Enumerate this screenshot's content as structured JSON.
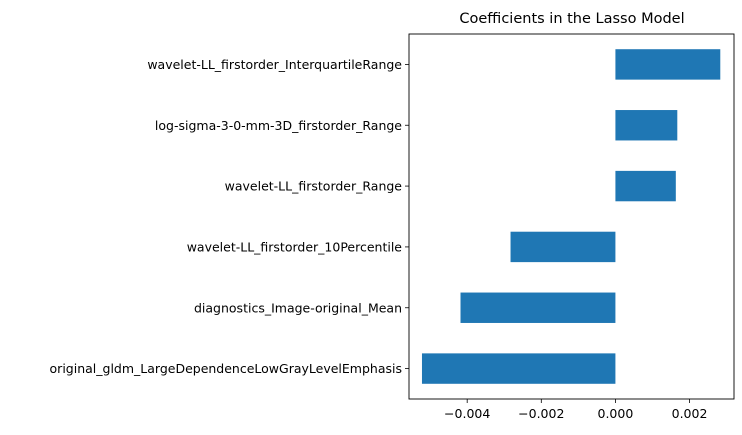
{
  "chart_data": {
    "type": "bar",
    "orientation": "horizontal",
    "title": "Coefficients in the Lasso Model",
    "xlabel": "",
    "ylabel": "",
    "categories": [
      "original_gldm_LargeDependenceLowGrayLevelEmphasis",
      "diagnostics_Image-original_Mean",
      "wavelet-LL_firstorder_10Percentile",
      "wavelet-LL_firstorder_Range",
      "log-sigma-3-0-mm-3D_firstorder_Range",
      "wavelet-LL_firstorder_InterquartileRange"
    ],
    "values": [
      -0.00522,
      -0.00418,
      -0.00283,
      0.00163,
      0.00167,
      0.00283
    ],
    "xlim": [
      -0.00557,
      0.0032
    ],
    "xticks": [
      -0.004,
      -0.002,
      0.0,
      0.002
    ],
    "xtick_labels": [
      "−0.004",
      "−0.002",
      "0.000",
      "0.002"
    ],
    "bar_color": "#1f77b4",
    "grid": false,
    "legend": "none"
  }
}
